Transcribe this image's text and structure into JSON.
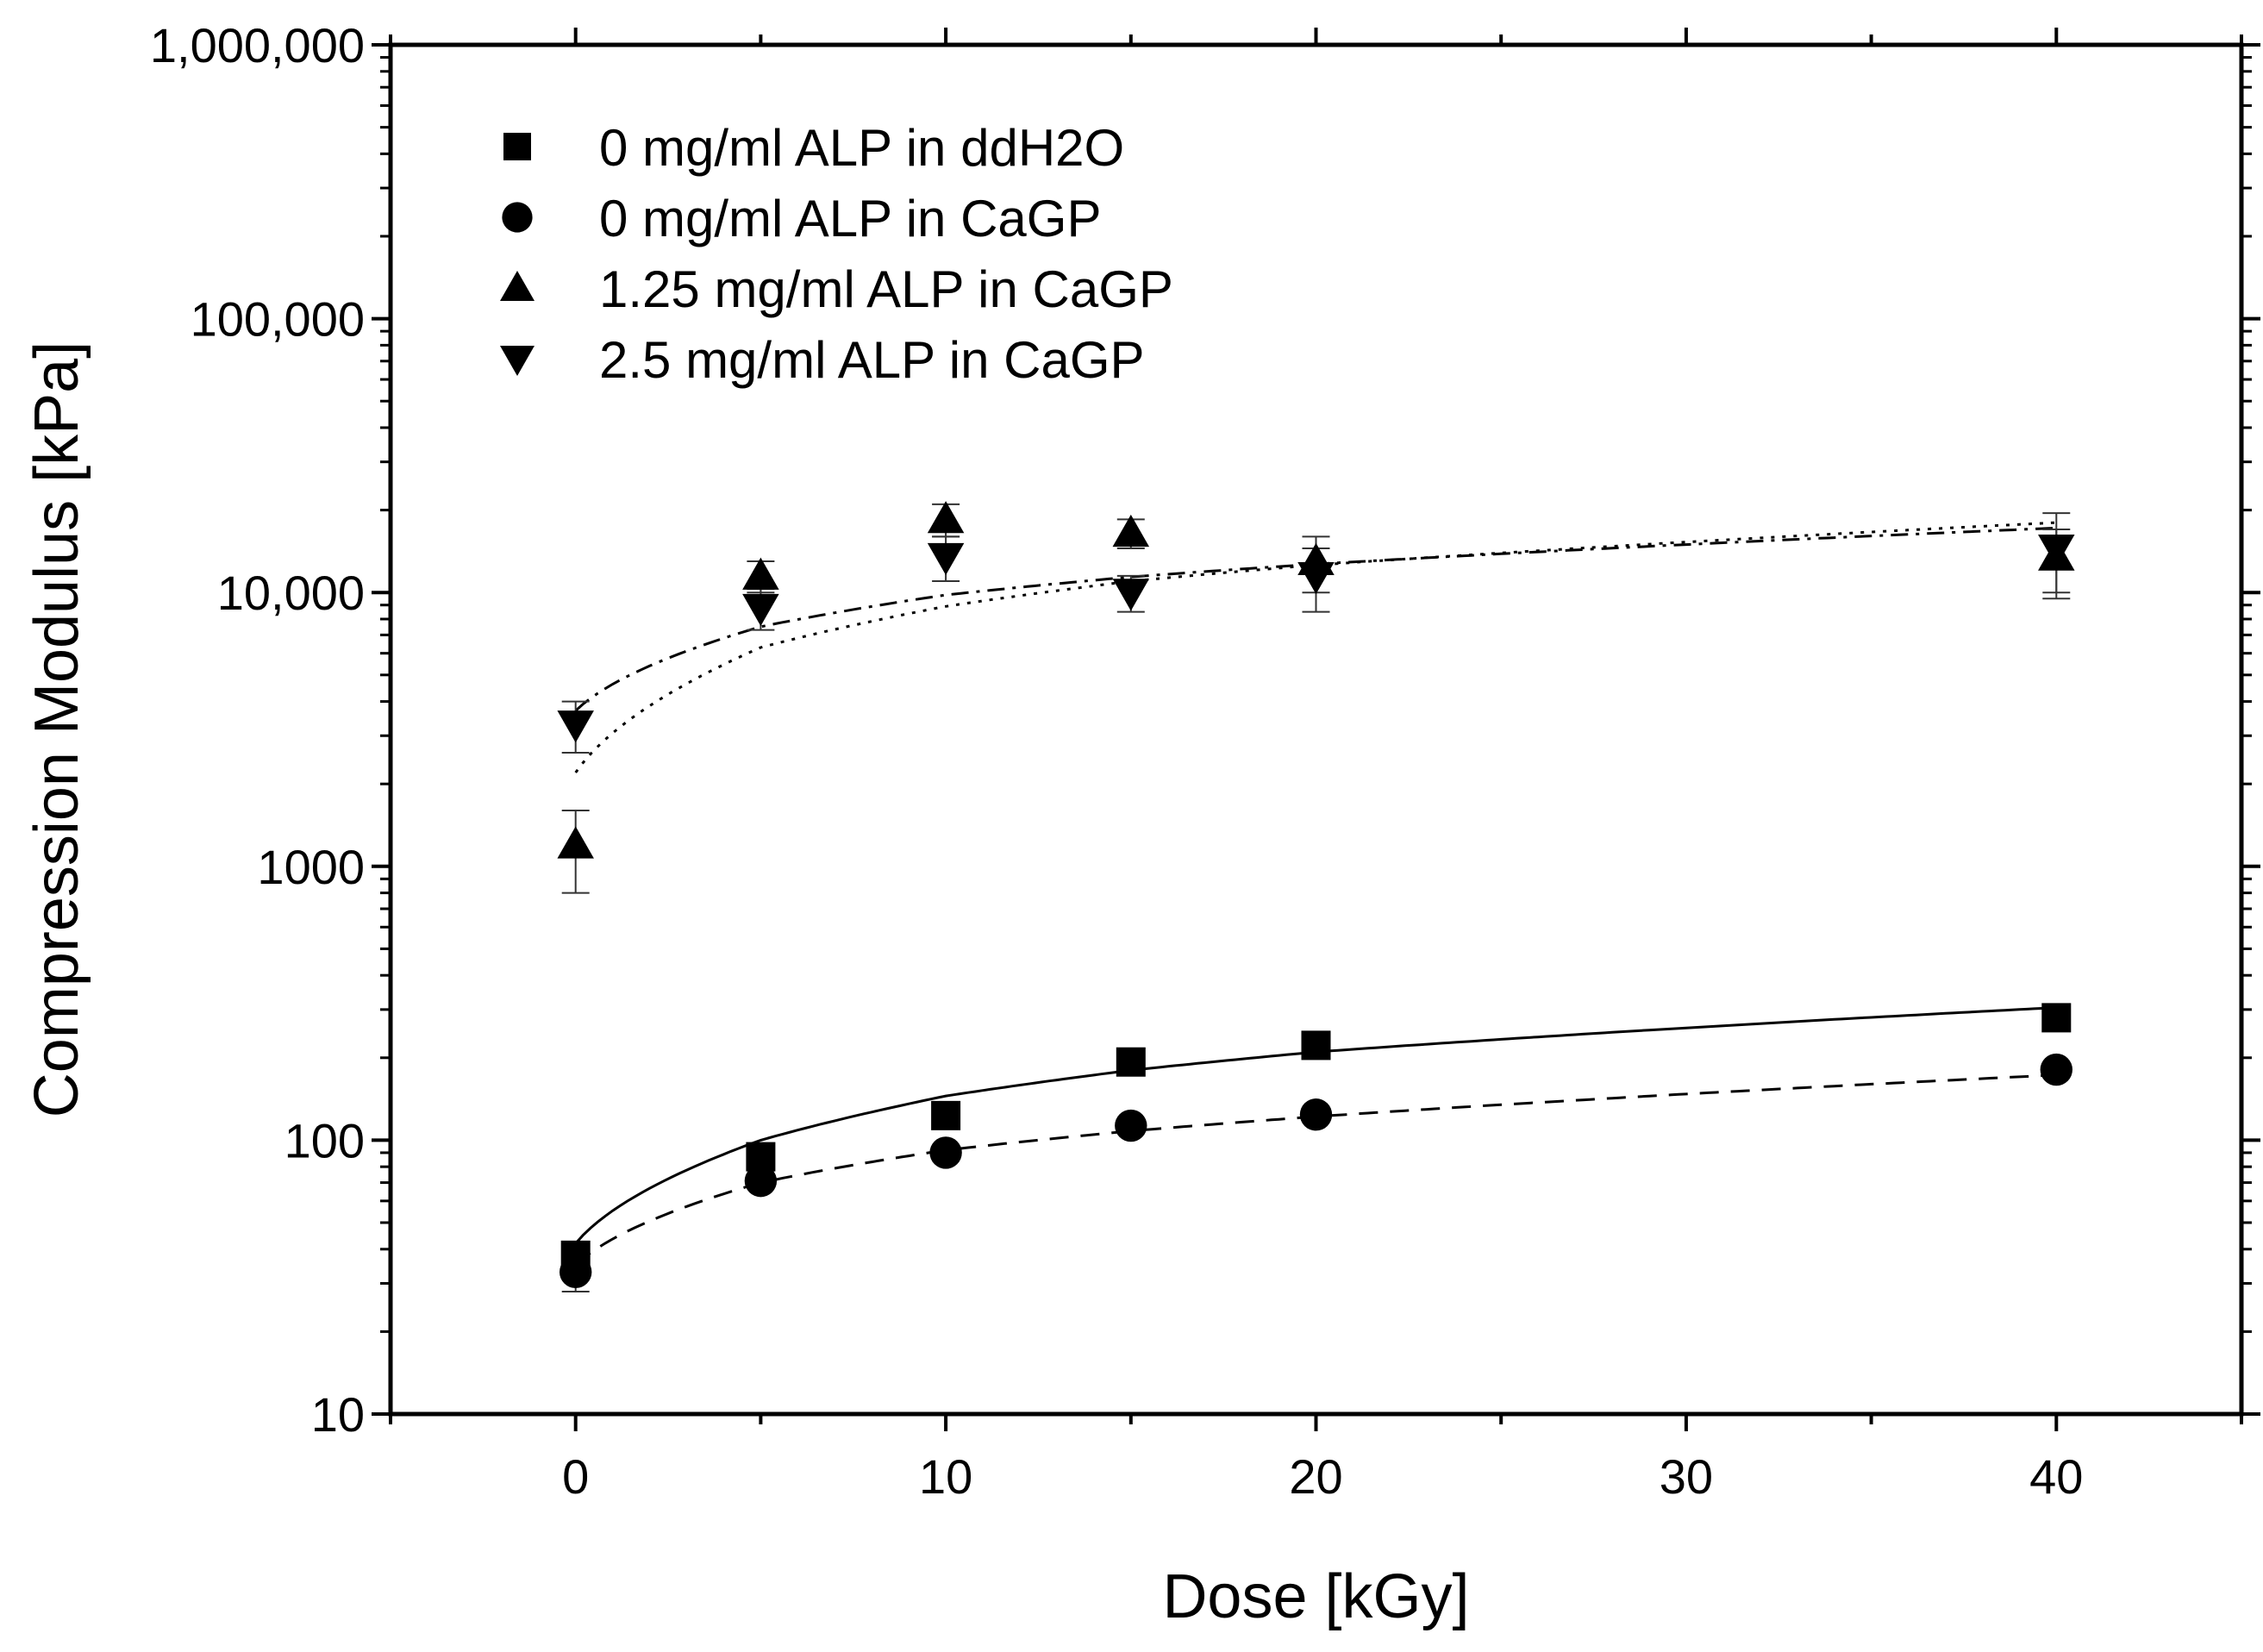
{
  "chart_data": {
    "type": "scatter",
    "xlabel": "Dose [kGy]",
    "ylabel": "Compression Modulus [kPa]",
    "xlim": [
      -5,
      45
    ],
    "ylim": [
      10,
      1000000
    ],
    "yscale": "log",
    "grid": false,
    "legend_position": "top-left",
    "x_ticks": [
      0,
      10,
      20,
      30,
      40
    ],
    "x_tick_labels": [
      "0",
      "10",
      "20",
      "30",
      "40"
    ],
    "y_ticks": [
      10,
      100,
      1000,
      10000,
      100000,
      1000000
    ],
    "y_tick_labels": [
      "10",
      "100",
      "1000",
      "10,000",
      "100,000",
      "1,000,000"
    ],
    "series": [
      {
        "name": "0 mg/ml ALP in ddH2O",
        "marker": "square",
        "x": [
          0,
          5,
          10,
          15,
          20,
          40
        ],
        "y": [
          38,
          87,
          123,
          193,
          222,
          280
        ],
        "err": [
          0,
          0,
          0,
          0,
          0,
          0
        ],
        "fit": {
          "style": "solid",
          "y": [
            42,
            100,
            145,
            180,
            210,
            305
          ]
        }
      },
      {
        "name": "0 mg/ml ALP in CaGP",
        "marker": "circle",
        "x": [
          0,
          5,
          10,
          15,
          20,
          40
        ],
        "y": [
          33,
          71,
          90,
          113,
          124,
          181
        ],
        "err": [
          5,
          0,
          0,
          0,
          0,
          0
        ],
        "fit": {
          "style": "dashed",
          "y": [
            35,
            70,
            92,
            108,
            122,
            173
          ]
        }
      },
      {
        "name": "1.25 mg/ml ALP in CaGP",
        "marker": "triangle-up",
        "x": [
          0,
          5,
          10,
          15,
          20,
          40
        ],
        "y": [
          1200,
          11500,
          18500,
          16500,
          13000,
          13500
        ],
        "err": [
          400,
          1500,
          2500,
          2000,
          3000,
          3500
        ],
        "fit": {
          "style": "dotted",
          "y": [
            2200,
            6300,
            8900,
            11000,
            12600,
            18000
          ]
        }
      },
      {
        "name": "2.5 mg/ml ALP in CaGP",
        "marker": "triangle-down",
        "x": [
          0,
          5,
          10,
          15,
          20,
          40
        ],
        "y": [
          3300,
          8800,
          13500,
          10000,
          11500,
          14500
        ],
        "err": [
          700,
          1500,
          2500,
          1500,
          3000,
          5000
        ],
        "fit": {
          "style": "dash-dot",
          "y": [
            3700,
            7500,
            9800,
            11400,
            12700,
            17200
          ]
        }
      }
    ]
  }
}
